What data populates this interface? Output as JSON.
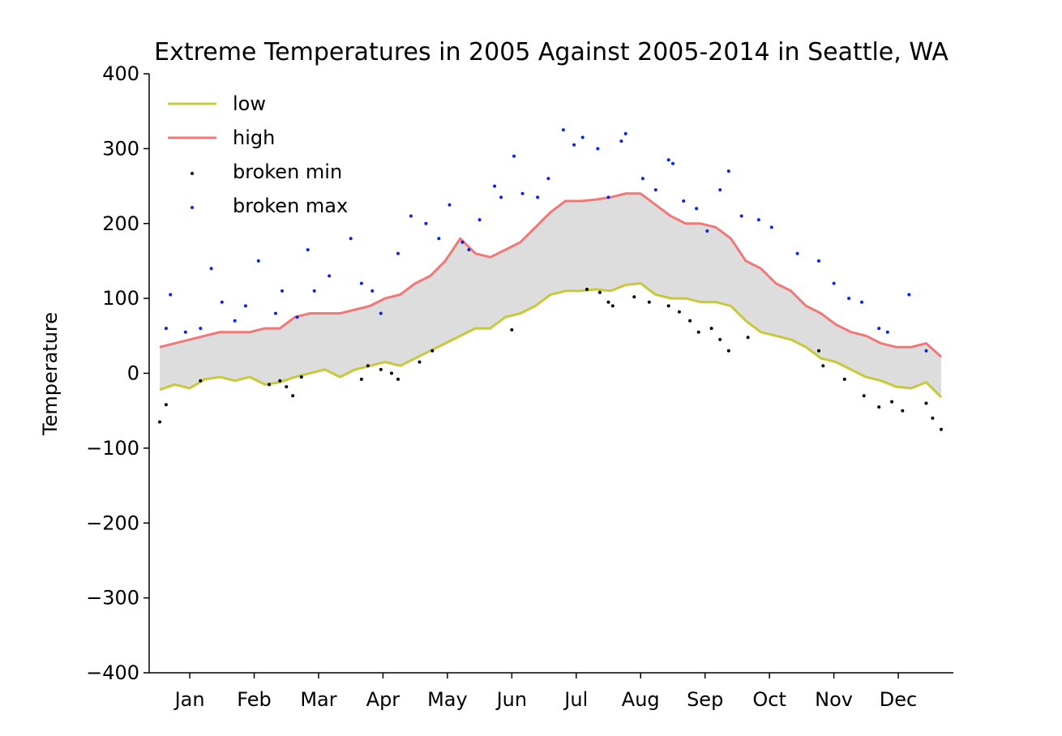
{
  "chart_data": {
    "type": "line",
    "title": "Extreme Temperatures in 2005 Against 2005-2014 in Seattle, WA",
    "xlabel": "",
    "ylabel": "Temperature",
    "xlim": [
      1,
      365
    ],
    "ylim": [
      -400,
      400
    ],
    "yticks": [
      400,
      300,
      200,
      100,
      0,
      -100,
      -200,
      -300,
      -400
    ],
    "ytick_labels": [
      "400",
      "300",
      "200",
      "100",
      "0",
      "−100",
      "−200",
      "−300",
      "−400"
    ],
    "xticks": [
      {
        "day": 15,
        "label": "Jan"
      },
      {
        "day": 45,
        "label": "Feb"
      },
      {
        "day": 75,
        "label": "Mar"
      },
      {
        "day": 105,
        "label": "Apr"
      },
      {
        "day": 135,
        "label": "May"
      },
      {
        "day": 165,
        "label": "Jun"
      },
      {
        "day": 195,
        "label": "Jul"
      },
      {
        "day": 225,
        "label": "Aug"
      },
      {
        "day": 255,
        "label": "Sep"
      },
      {
        "day": 285,
        "label": "Oct"
      },
      {
        "day": 315,
        "label": "Nov"
      },
      {
        "day": 345,
        "label": "Dec"
      }
    ],
    "grid": false,
    "legend_position": "top-left",
    "fill_between": {
      "lower": "low",
      "upper": "high",
      "color": "#dddddd"
    },
    "series": [
      {
        "name": "low",
        "kind": "line",
        "color": "#c8c83c",
        "x": [
          1,
          8,
          15,
          22,
          29,
          36,
          43,
          50,
          57,
          64,
          71,
          78,
          85,
          92,
          99,
          106,
          113,
          120,
          127,
          134,
          141,
          148,
          155,
          162,
          169,
          176,
          183,
          190,
          197,
          204,
          211,
          218,
          225,
          232,
          239,
          246,
          253,
          260,
          267,
          274,
          281,
          288,
          295,
          302,
          309,
          316,
          323,
          330,
          337,
          344,
          351,
          358,
          365
        ],
        "y": [
          -22,
          -15,
          -20,
          -8,
          -5,
          -10,
          -5,
          -15,
          -12,
          -5,
          0,
          5,
          -5,
          5,
          10,
          15,
          10,
          20,
          30,
          40,
          50,
          60,
          60,
          75,
          80,
          90,
          105,
          110,
          110,
          112,
          110,
          118,
          120,
          105,
          100,
          100,
          95,
          95,
          90,
          70,
          55,
          50,
          45,
          35,
          20,
          15,
          5,
          -5,
          -10,
          -18,
          -20,
          -12,
          -32
        ]
      },
      {
        "name": "high",
        "kind": "line",
        "color": "#f07878",
        "x": [
          1,
          8,
          15,
          22,
          29,
          36,
          43,
          50,
          57,
          64,
          71,
          78,
          85,
          92,
          99,
          106,
          113,
          120,
          127,
          134,
          141,
          148,
          155,
          162,
          169,
          176,
          183,
          190,
          197,
          204,
          211,
          218,
          225,
          232,
          239,
          246,
          253,
          260,
          267,
          274,
          281,
          288,
          295,
          302,
          309,
          316,
          323,
          330,
          337,
          344,
          351,
          358,
          365
        ],
        "y": [
          35,
          40,
          45,
          50,
          55,
          55,
          55,
          60,
          60,
          75,
          80,
          80,
          80,
          85,
          90,
          100,
          105,
          120,
          130,
          150,
          180,
          160,
          155,
          165,
          175,
          195,
          215,
          230,
          230,
          232,
          235,
          240,
          240,
          225,
          210,
          200,
          200,
          195,
          180,
          150,
          140,
          120,
          110,
          90,
          80,
          65,
          55,
          50,
          40,
          35,
          35,
          40,
          22
        ]
      },
      {
        "name": "broken min",
        "kind": "scatter",
        "color": "#000000",
        "x": [
          1,
          4,
          20,
          52,
          57,
          60,
          63,
          67,
          95,
          98,
          104,
          109,
          112,
          122,
          128,
          165,
          200,
          206,
          210,
          212,
          222,
          229,
          238,
          243,
          248,
          252,
          258,
          262,
          266,
          275,
          308,
          310,
          320,
          329,
          336,
          342,
          347,
          358,
          361,
          365
        ],
        "y": [
          -65,
          -42,
          -10,
          -15,
          -10,
          -18,
          -30,
          -5,
          -8,
          10,
          5,
          0,
          -8,
          15,
          30,
          58,
          112,
          108,
          95,
          90,
          102,
          95,
          90,
          82,
          70,
          55,
          60,
          45,
          30,
          48,
          30,
          10,
          -8,
          -30,
          -45,
          -38,
          -50,
          -40,
          -60,
          -75
        ]
      },
      {
        "name": "broken max",
        "kind": "scatter",
        "color": "#0a22ee",
        "x": [
          4,
          6,
          13,
          20,
          25,
          30,
          36,
          41,
          47,
          55,
          58,
          65,
          70,
          73,
          80,
          90,
          95,
          100,
          104,
          112,
          118,
          125,
          131,
          136,
          142,
          145,
          150,
          157,
          160,
          166,
          170,
          177,
          182,
          189,
          194,
          198,
          205,
          210,
          216,
          218,
          226,
          232,
          238,
          240,
          245,
          251,
          256,
          262,
          266,
          272,
          280,
          286,
          298,
          308,
          315,
          322,
          328,
          336,
          340,
          350,
          358
        ],
        "y": [
          60,
          105,
          55,
          60,
          140,
          95,
          70,
          90,
          150,
          80,
          110,
          75,
          165,
          110,
          130,
          180,
          120,
          110,
          80,
          160,
          210,
          200,
          180,
          225,
          175,
          165,
          205,
          250,
          235,
          290,
          240,
          235,
          260,
          325,
          305,
          315,
          300,
          235,
          310,
          320,
          260,
          245,
          285,
          280,
          230,
          220,
          190,
          245,
          270,
          210,
          205,
          195,
          160,
          150,
          120,
          100,
          95,
          60,
          55,
          105,
          30
        ]
      }
    ]
  }
}
